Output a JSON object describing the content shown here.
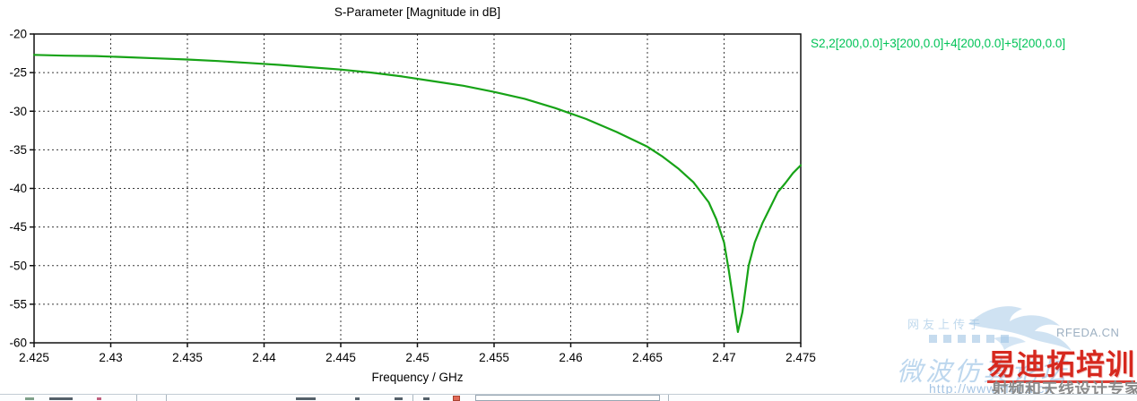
{
  "chart_data": {
    "type": "line",
    "title": "S-Parameter [Magnitude in dB]",
    "xlabel": "Frequency / GHz",
    "ylabel": "",
    "xlim": [
      2.425,
      2.475
    ],
    "ylim": [
      -60,
      -20
    ],
    "x_ticks": [
      2.425,
      2.43,
      2.435,
      2.44,
      2.445,
      2.45,
      2.455,
      2.46,
      2.465,
      2.47,
      2.475
    ],
    "x_tick_labels": [
      "2.425",
      "2.43",
      "2.435",
      "2.44",
      "2.445",
      "2.45",
      "2.455",
      "2.46",
      "2.465",
      "2.47",
      "2.475"
    ],
    "y_ticks": [
      -20,
      -25,
      -30,
      -35,
      -40,
      -45,
      -50,
      -55,
      -60
    ],
    "y_tick_labels": [
      "-20",
      "-25",
      "-30",
      "-35",
      "-40",
      "-45",
      "-50",
      "-55",
      "-60"
    ],
    "grid": "dashed",
    "legend_position": "top-right-outside",
    "series": [
      {
        "name": "S2,2[200,0.0]+3[200,0.0]+4[200,0.0]+5[200,0.0]",
        "color": "#17a317",
        "x": [
          2.425,
          2.427,
          2.429,
          2.431,
          2.433,
          2.435,
          2.437,
          2.439,
          2.441,
          2.443,
          2.445,
          2.447,
          2.449,
          2.451,
          2.453,
          2.455,
          2.457,
          2.459,
          2.461,
          2.463,
          2.465,
          2.466,
          2.467,
          2.468,
          2.469,
          2.4695,
          2.47,
          2.4703,
          2.4706,
          2.4709,
          2.4712,
          2.4716,
          2.472,
          2.4725,
          2.473,
          2.4735,
          2.474,
          2.4745,
          2.475
        ],
        "y": [
          -22.7,
          -22.8,
          -22.85,
          -23.0,
          -23.15,
          -23.3,
          -23.5,
          -23.75,
          -24.0,
          -24.3,
          -24.6,
          -25.0,
          -25.5,
          -26.1,
          -26.7,
          -27.5,
          -28.4,
          -29.6,
          -31.0,
          -32.7,
          -34.6,
          -35.9,
          -37.4,
          -39.2,
          -41.8,
          -44.0,
          -47.0,
          -50.5,
          -54.5,
          -58.6,
          -56.0,
          -50.0,
          -47.0,
          -44.5,
          -42.5,
          -40.5,
          -39.3,
          -38.0,
          -37.0
        ]
      }
    ]
  },
  "legend": {
    "label": "S2,2[200,0.0]+3[200,0.0]+4[200,0.0]+5[200,0.0]",
    "color": "#00c357"
  },
  "colors": {
    "curve": "#17a317",
    "legend_text": "#00c357",
    "axis": "#111111",
    "watermark_red": "#d6281e",
    "watermark_gray": "#8b8b8b",
    "watermark_blue": "#9ec4e4"
  },
  "watermark": {
    "uploaded_note": "网友上传于",
    "forum_script": "微波仿真论坛",
    "site": "RFEDA.CN",
    "url": "http://www.rfeda.cn",
    "brand": "易迪拓培训",
    "slogan": "射频和天线设计专家"
  }
}
